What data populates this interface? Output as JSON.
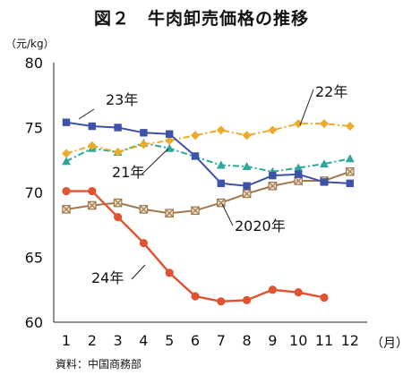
{
  "title": "図２　牛肉卸売価格の推移",
  "y_unit": "（元/kg）",
  "x_unit": "（月）",
  "source": "資料：中国商務部",
  "chart_data": {
    "type": "line",
    "categories": [
      "1",
      "2",
      "3",
      "4",
      "5",
      "6",
      "7",
      "8",
      "9",
      "10",
      "11",
      "12"
    ],
    "ylim": [
      60,
      80
    ],
    "yticks": [
      60,
      65,
      70,
      75,
      80
    ],
    "grid": false,
    "series": [
      {
        "name": "2020年",
        "color": "#A07850",
        "marker": "square-x",
        "dash": "solid",
        "values": [
          68.7,
          69.0,
          69.2,
          68.7,
          68.4,
          68.6,
          69.2,
          69.9,
          70.5,
          70.9,
          70.9,
          71.6
        ]
      },
      {
        "name": "21年",
        "color": "#2BA89A",
        "marker": "triangle",
        "dash": "dashdot",
        "values": [
          72.4,
          73.4,
          73.1,
          73.8,
          73.4,
          null,
          72.1,
          72.0,
          71.6,
          71.9,
          72.2,
          72.6
        ]
      },
      {
        "name": "22年",
        "color": "#EDAA2B",
        "marker": "diamond",
        "dash": "dashdot",
        "values": [
          73.0,
          73.6,
          73.1,
          73.7,
          74.0,
          74.4,
          74.8,
          74.4,
          74.8,
          75.3,
          75.3,
          75.1
        ]
      },
      {
        "name": "23年",
        "color": "#3D52A8",
        "marker": "square",
        "dash": "solid",
        "values": [
          75.4,
          75.1,
          75.0,
          74.6,
          74.5,
          72.8,
          70.7,
          70.5,
          71.3,
          71.4,
          70.8,
          70.7
        ]
      },
      {
        "name": "24年",
        "color": "#E05230",
        "marker": "circle",
        "dash": "solid",
        "values": [
          70.1,
          70.1,
          68.1,
          66.1,
          63.8,
          62.0,
          61.6,
          61.7,
          62.5,
          62.3,
          61.9,
          null
        ]
      }
    ]
  }
}
